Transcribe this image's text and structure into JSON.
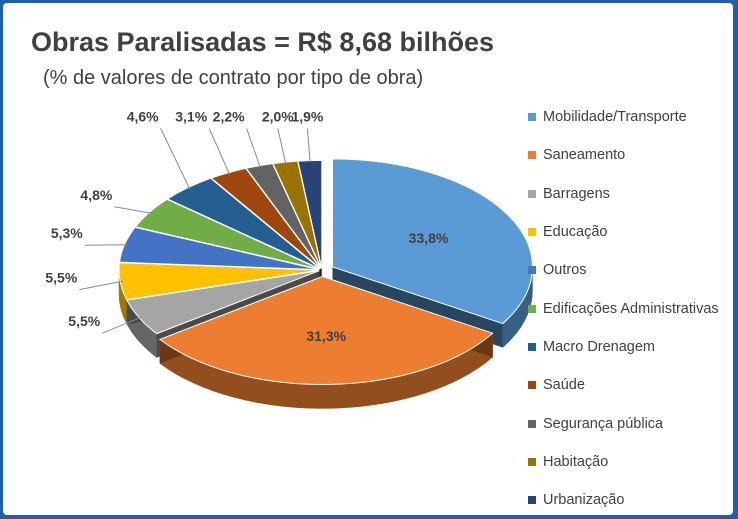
{
  "chart_data": {
    "type": "pie",
    "title": "Obras Paralisadas = R$ 8,68 bilhões",
    "subtitle": "(% de valores de contrato por tipo de obra)",
    "legend_position": "right",
    "slices": [
      {
        "name": "Mobilidade/Transporte",
        "value": 33.8,
        "label": "33,8%",
        "color": "#5b9bd5"
      },
      {
        "name": "Saneamento",
        "value": 31.3,
        "label": "31,3%",
        "color": "#ed7d31"
      },
      {
        "name": "Barragens",
        "value": 5.5,
        "label": "5,5%",
        "color": "#a5a5a5"
      },
      {
        "name": "Educação",
        "value": 5.5,
        "label": "5,5%",
        "color": "#ffc000"
      },
      {
        "name": "Outros",
        "value": 5.3,
        "label": "5,3%",
        "color": "#4472c4"
      },
      {
        "name": "Edificações Administrativas",
        "value": 4.8,
        "label": "4,8%",
        "color": "#70ad47"
      },
      {
        "name": "Macro Drenagem",
        "value": 4.6,
        "label": "4,6%",
        "color": "#255e91"
      },
      {
        "name": "Saúde",
        "value": 3.1,
        "label": "3,1%",
        "color": "#9e480e"
      },
      {
        "name": "Segurança pública",
        "value": 2.2,
        "label": "2,2%",
        "color": "#636363"
      },
      {
        "name": "Habitação",
        "value": 2.0,
        "label": "2,0%",
        "color": "#997300"
      },
      {
        "name": "Urbanização",
        "value": 1.9,
        "label": "1,9%",
        "color": "#264478"
      }
    ]
  }
}
